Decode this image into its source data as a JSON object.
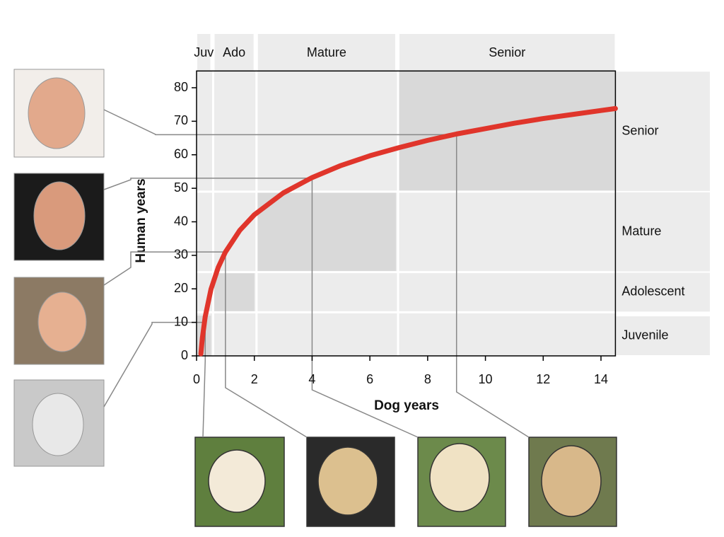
{
  "chart_data": {
    "type": "line",
    "x_label": "Dog years",
    "y_label": "Human years",
    "xlim": [
      0,
      14.5
    ],
    "ylim": [
      0,
      85
    ],
    "xticks": [
      0,
      2,
      4,
      6,
      8,
      10,
      12,
      14
    ],
    "yticks": [
      0,
      10,
      20,
      30,
      40,
      50,
      60,
      70,
      80
    ],
    "series": [
      {
        "color": "#e0352b",
        "x": [
          0.15,
          0.2,
          0.3,
          0.5,
          0.75,
          1,
          1.5,
          2,
          3,
          4,
          5,
          6,
          7,
          8,
          9,
          10,
          11,
          12,
          13,
          14,
          14.5
        ],
        "values": [
          0.6,
          5.3,
          11.7,
          19.9,
          26.4,
          31,
          37.5,
          42.1,
          48.6,
          53.2,
          56.8,
          59.7,
          62.1,
          64.3,
          66.2,
          67.8,
          69.4,
          70.8,
          72.0,
          73.2,
          73.8
        ]
      }
    ],
    "stages": [
      {
        "dog_label": "Juv",
        "human_label": "Juvenile",
        "x": [
          0,
          0.5
        ],
        "y": [
          0,
          12
        ]
      },
      {
        "dog_label": "Ado",
        "human_label": "Adolescent",
        "x": [
          0.6,
          2
        ],
        "y": [
          13,
          25
        ]
      },
      {
        "dog_label": "Mature",
        "human_label": "Mature",
        "x": [
          2.1,
          6.9
        ],
        "y": [
          25,
          49
        ]
      },
      {
        "dog_label": "Senior",
        "human_label": "Senior",
        "x": [
          7,
          14.5
        ],
        "y": [
          49,
          85
        ]
      }
    ],
    "highlights": {
      "x": [
        0.3,
        1,
        4,
        9
      ],
      "y": [
        10,
        31,
        53,
        66
      ]
    }
  }
}
